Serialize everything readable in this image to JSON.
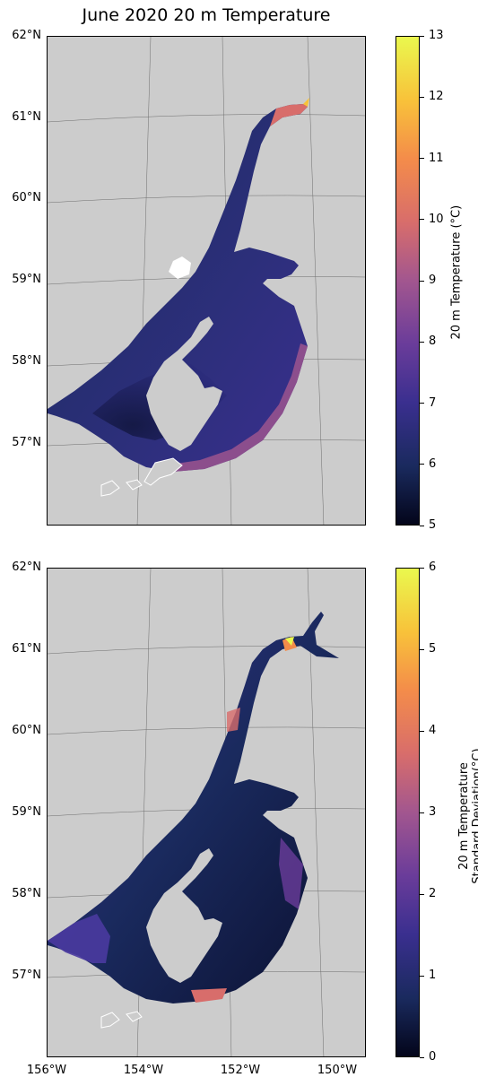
{
  "title": "June 2020 20 m Temperature",
  "latitude_labels": [
    "62°N",
    "61°N",
    "60°N",
    "59°N",
    "58°N",
    "57°N"
  ],
  "longitude_labels": [
    "156°W",
    "154°W",
    "152°W",
    "150°W"
  ],
  "colors": {
    "land": "#cccccc",
    "cmap": [
      "#03051a",
      "#1a2a5e",
      "#3a2f8f",
      "#6a3c9a",
      "#a2568f",
      "#d86d6b",
      "#f48c4a",
      "#f8c23a",
      "#eaf84e"
    ]
  },
  "chart_data": [
    {
      "type": "heatmap",
      "title": "June 2020 20 m Temperature",
      "colorbar_label": "20 m Temperature (°C)",
      "colorbar_range": [
        5,
        13
      ],
      "colorbar_ticks": [
        "5",
        "6",
        "7",
        "8",
        "9",
        "10",
        "11",
        "12",
        "13"
      ],
      "lat_range": [
        56.0,
        62.0
      ],
      "lon_range": [
        -156.0,
        -149.0
      ]
    },
    {
      "type": "heatmap",
      "title": "",
      "colorbar_label_line1": "20 m Temperature",
      "colorbar_label_line2": "Standard Deviation(°C)",
      "colorbar_range": [
        0,
        6
      ],
      "colorbar_ticks": [
        "0",
        "1",
        "2",
        "3",
        "4",
        "5",
        "6"
      ],
      "lat_range": [
        56.0,
        62.0
      ],
      "lon_range": [
        -156.0,
        -149.0
      ]
    }
  ]
}
